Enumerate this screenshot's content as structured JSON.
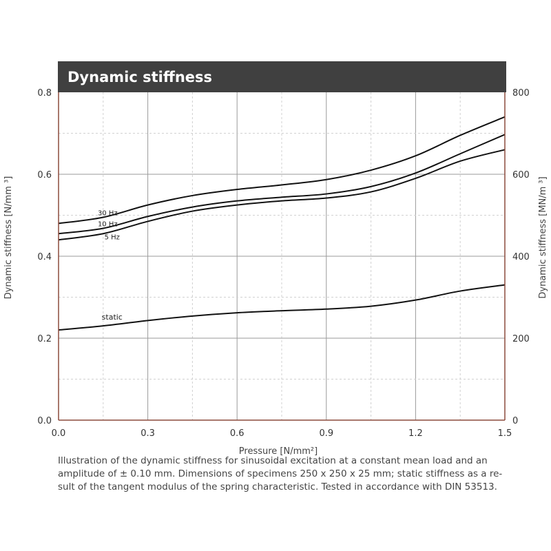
{
  "chart_data": {
    "type": "line",
    "title": "Dynamic stiffness",
    "xlabel": "Pressure [N/mm²]",
    "ylabel_left": "Dynamic stiffness   [N/mm ³]",
    "ylabel_right": "Dynamic stiffness   [MN/m ³]",
    "xlim": [
      0,
      1.5
    ],
    "ylim_left": [
      0,
      0.8
    ],
    "ylim_right": [
      0,
      800
    ],
    "x_ticks": [
      "0.0",
      "0.3",
      "0.6",
      "0.9",
      "1.2",
      "1.5"
    ],
    "y_ticks_left": [
      "0.0",
      "0.2",
      "0.4",
      "0.6",
      "0.8"
    ],
    "y_ticks_right": [
      "0",
      "200",
      "400",
      "600",
      "800"
    ],
    "grid": true,
    "series": [
      {
        "name": "30 Hz",
        "x": [
          0,
          0.15,
          0.3,
          0.45,
          0.6,
          0.75,
          0.9,
          1.05,
          1.2,
          1.35,
          1.5
        ],
        "y": [
          0.48,
          0.495,
          0.525,
          0.548,
          0.563,
          0.574,
          0.587,
          0.61,
          0.645,
          0.695,
          0.74
        ]
      },
      {
        "name": "10 Hz",
        "x": [
          0,
          0.15,
          0.3,
          0.45,
          0.6,
          0.75,
          0.9,
          1.05,
          1.2,
          1.35,
          1.5
        ],
        "y": [
          0.455,
          0.468,
          0.497,
          0.52,
          0.535,
          0.544,
          0.552,
          0.57,
          0.603,
          0.65,
          0.697
        ]
      },
      {
        "name": "5 Hz",
        "x": [
          0,
          0.15,
          0.3,
          0.45,
          0.6,
          0.75,
          0.9,
          1.05,
          1.2,
          1.35,
          1.5
        ],
        "y": [
          0.44,
          0.455,
          0.485,
          0.51,
          0.525,
          0.535,
          0.542,
          0.557,
          0.59,
          0.632,
          0.66
        ]
      },
      {
        "name": "static",
        "x": [
          0,
          0.15,
          0.3,
          0.45,
          0.6,
          0.75,
          0.9,
          1.05,
          1.2,
          1.35,
          1.5
        ],
        "y": [
          0.22,
          0.23,
          0.243,
          0.254,
          0.262,
          0.267,
          0.271,
          0.278,
          0.293,
          0.315,
          0.33
        ]
      }
    ],
    "label_positions": {
      "30 Hz": {
        "x": 0.165,
        "y": 0.5
      },
      "10 Hz": {
        "x": 0.165,
        "y": 0.473
      },
      "5 Hz": {
        "x": 0.18,
        "y": 0.441
      },
      "static": {
        "x": 0.18,
        "y": 0.245
      }
    },
    "colors": {
      "line": "#111111",
      "title_bg": "#404040",
      "frame": "#8b4a3c",
      "grid_major": "#9a9a9a",
      "grid_minor": "#d0d0d0"
    }
  },
  "caption": [
    "Illustration of the dynamic stiffness for sinusoidal excitation at a constant mean load and an",
    "amplitude of ± 0.10 mm.  Dimensions of specimens 250 x 250 x 25 mm; static stiffness as a re-",
    "sult of the tangent modulus of the spring characteristic. Tested in accordance with DIN 53513."
  ]
}
